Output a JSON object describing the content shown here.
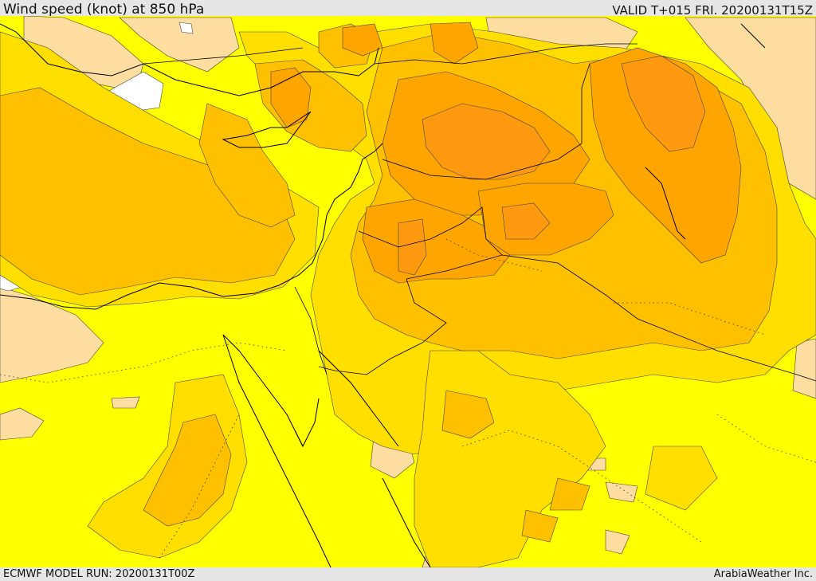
{
  "header": {
    "title": "Wind speed (knot) at 850 hPa",
    "valid": "VALID T+015 FRI. 20200131T15Z"
  },
  "footer": {
    "model_run": "ECMWF MODEL RUN: 20200131T00Z",
    "credit": "ArabiaWeather Inc."
  },
  "map": {
    "colors": {
      "white": "#ffffff",
      "tan": "#fddea0",
      "yellow": "#ffff00",
      "light_gold": "#ffdf00",
      "gold": "#ffc000",
      "orange": "#ffa500",
      "dark_orange": "#ff9a10",
      "contour": "#444444",
      "border": "#000000"
    }
  }
}
